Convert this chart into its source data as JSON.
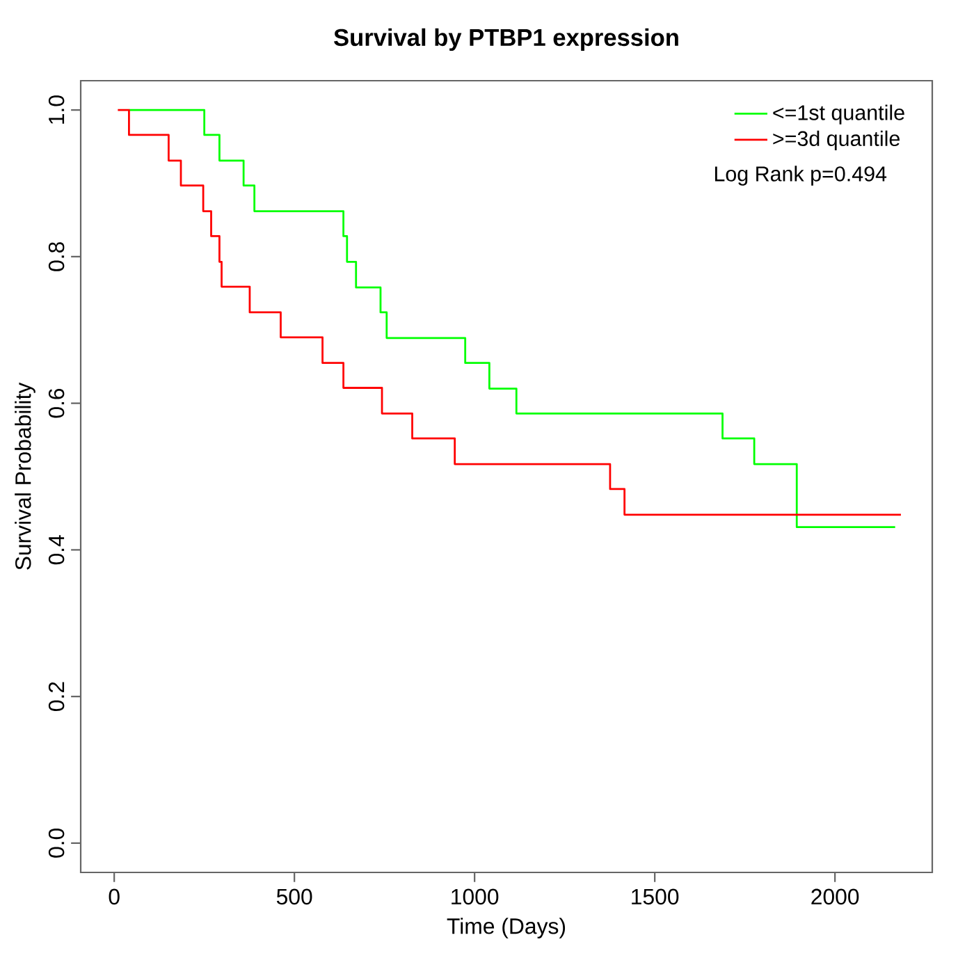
{
  "chart_data": {
    "type": "step",
    "title": "Survival by PTBP1 expression",
    "xlabel": "Time (Days)",
    "ylabel": "Survival Probability",
    "xlim": [
      -93,
      2270
    ],
    "ylim": [
      -0.04,
      1.04
    ],
    "xticks": [
      0,
      500,
      1000,
      1500,
      2000
    ],
    "yticks": [
      {
        "value": 0,
        "label": "0.0"
      },
      {
        "value": 0.2,
        "label": "0.2"
      },
      {
        "value": 0.4,
        "label": "0.4"
      },
      {
        "value": 0.6,
        "label": "0.6"
      },
      {
        "value": 0.8,
        "label": "0.8"
      },
      {
        "value": 1,
        "label": "1.0"
      }
    ],
    "legend": "top right",
    "annotations": [
      "Log Rank p=0.494"
    ],
    "series": [
      {
        "name": "<=1st quantile",
        "color": "#00ff00",
        "x": [
          41,
          250,
          292,
          359,
          389,
          636,
          646,
          671,
          739,
          756,
          974,
          1041,
          1116,
          1688,
          1776,
          1894,
          2167
        ],
        "values": [
          1.0,
          0.966,
          0.931,
          0.897,
          0.862,
          0.828,
          0.793,
          0.758,
          0.724,
          0.689,
          0.655,
          0.62,
          0.586,
          0.552,
          0.517,
          0.431,
          0.431
        ]
      },
      {
        "name": ">=3d quantile",
        "color": "#ff0000",
        "x": [
          10,
          41,
          151,
          185,
          247,
          269,
          292,
          298,
          376,
          462,
          578,
          636,
          743,
          827,
          945,
          1376,
          1416,
          2183
        ],
        "values": [
          1.0,
          0.966,
          0.931,
          0.897,
          0.862,
          0.828,
          0.793,
          0.759,
          0.724,
          0.69,
          0.655,
          0.621,
          0.586,
          0.552,
          0.517,
          0.483,
          0.448,
          0.448
        ]
      }
    ]
  }
}
